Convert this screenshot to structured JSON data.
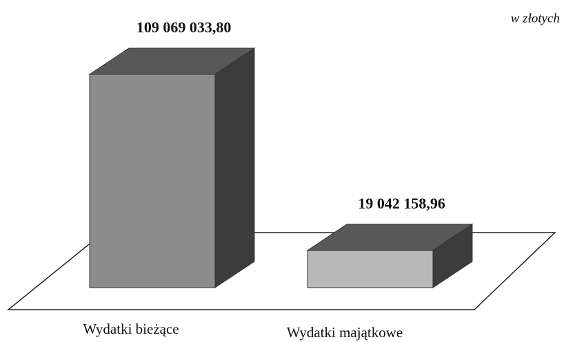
{
  "chart_data": {
    "type": "bar3d",
    "unit_note": "w złotych",
    "categories": [
      "Wydatki bieżące",
      "Wydatki majątkowe"
    ],
    "values": [
      109069033.8,
      19042158.96
    ],
    "value_labels": [
      "109 069 033,80",
      "19 042 158,96"
    ],
    "colors": [
      "#8c8c8c",
      "#b9b9b9"
    ]
  }
}
